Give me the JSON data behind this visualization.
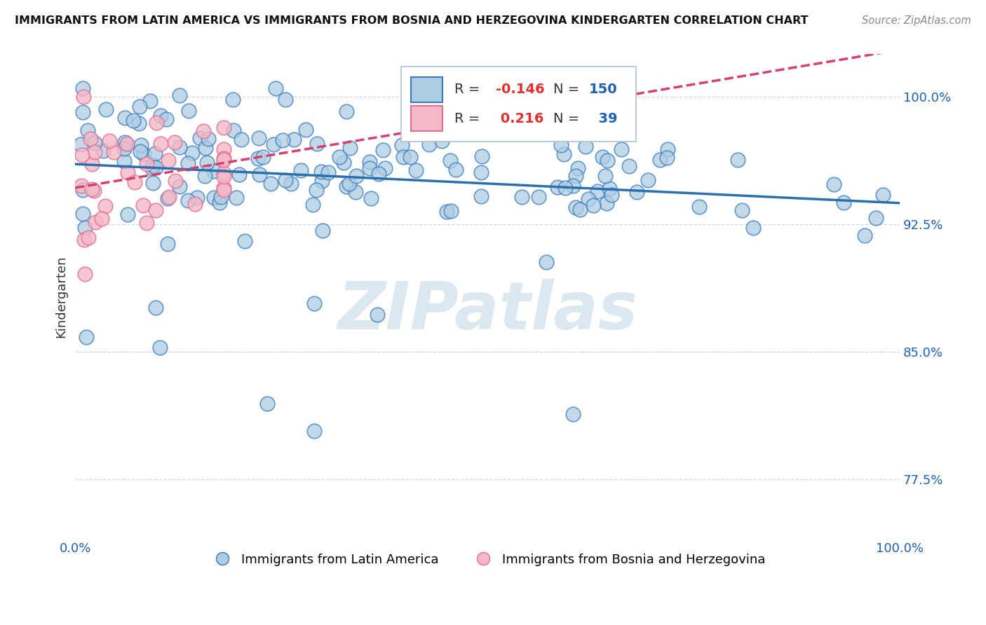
{
  "title": "IMMIGRANTS FROM LATIN AMERICA VS IMMIGRANTS FROM BOSNIA AND HERZEGOVINA KINDERGARTEN CORRELATION CHART",
  "source": "Source: ZipAtlas.com",
  "ylabel": "Kindergarten",
  "ytick_vals": [
    1.0,
    0.925,
    0.85,
    0.775
  ],
  "ytick_labels": [
    "100.0%",
    "92.5%",
    "85.0%",
    "77.5%"
  ],
  "xlim": [
    0.0,
    1.0
  ],
  "ylim": [
    0.74,
    1.025
  ],
  "legend_blue_R": "-0.146",
  "legend_blue_N": "150",
  "legend_pink_R": "0.216",
  "legend_pink_N": "39",
  "label_blue": "Immigrants from Latin America",
  "label_pink": "Immigrants from Bosnia and Herzegovina",
  "blue_fill": "#aecde3",
  "blue_edge": "#3a7abf",
  "pink_fill": "#f5b8c8",
  "pink_edge": "#e07090",
  "blue_line_color": "#2c6fad",
  "pink_line_color": "#d44070",
  "watermark_text": "ZIPatlas",
  "watermark_color": "#dce8f0",
  "grid_color": "#c8d8e8",
  "r_color": "#e03030",
  "n_color": "#2060b0",
  "title_color": "#111111",
  "source_color": "#888888",
  "ylabel_color": "#333333",
  "xtick_color": "#2060b0",
  "ytick_color": "#2060b0"
}
